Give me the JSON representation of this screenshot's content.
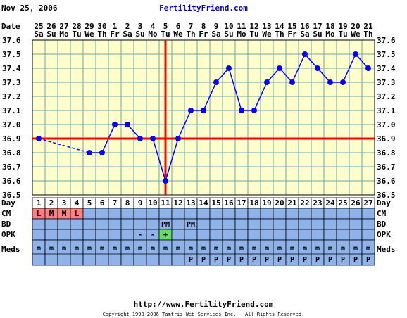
{
  "header": {
    "date": "Nov 25, 2006",
    "site_title": "FertilityFriend.com"
  },
  "footer": {
    "url": "http://www.FertilityFriend.com",
    "copyright": "Copyright 1998-2006 Tamtris Web Services Inc. - All Rights Reserved."
  },
  "labels": {
    "date": "Date",
    "day": "Day",
    "cm": "CM",
    "bd": "BD",
    "opk": "OPK",
    "meds": "Meds"
  },
  "colors": {
    "plot_bg": "#ffffcc",
    "grid": "#6fa8a8",
    "line": "#0000ff",
    "red": "#ff0000",
    "row_bg": "#8fb3e8",
    "day_row_bg": "#ffffff",
    "cm_cell": "#ff8080",
    "opk_positive": "#66dd66"
  },
  "chart_data": {
    "type": "line",
    "y_ticks": [
      "37.6",
      "37.5",
      "37.4",
      "37.3",
      "37.2",
      "37.1",
      "37.0",
      "36.9",
      "36.8",
      "36.7",
      "36.6",
      "36.5"
    ],
    "ylim": [
      36.5,
      37.6
    ],
    "dates": [
      {
        "d": "25",
        "w": "Sa"
      },
      {
        "d": "26",
        "w": "Su"
      },
      {
        "d": "27",
        "w": "Mo"
      },
      {
        "d": "28",
        "w": "Tu"
      },
      {
        "d": "29",
        "w": "We"
      },
      {
        "d": "30",
        "w": "Th"
      },
      {
        "d": "1",
        "w": "Fr"
      },
      {
        "d": "2",
        "w": "Sa"
      },
      {
        "d": "3",
        "w": "Su"
      },
      {
        "d": "4",
        "w": "Mo"
      },
      {
        "d": "5",
        "w": "Tu"
      },
      {
        "d": "6",
        "w": "We"
      },
      {
        "d": "7",
        "w": "Th"
      },
      {
        "d": "8",
        "w": "Fr"
      },
      {
        "d": "9",
        "w": "Sa"
      },
      {
        "d": "10",
        "w": "Su"
      },
      {
        "d": "11",
        "w": "Mo"
      },
      {
        "d": "12",
        "w": "Tu"
      },
      {
        "d": "13",
        "w": "We"
      },
      {
        "d": "14",
        "w": "Th"
      },
      {
        "d": "15",
        "w": "Fr"
      },
      {
        "d": "16",
        "w": "Sa"
      },
      {
        "d": "17",
        "w": "Su"
      },
      {
        "d": "18",
        "w": "Mo"
      },
      {
        "d": "19",
        "w": "Tu"
      },
      {
        "d": "20",
        "w": "We"
      },
      {
        "d": "21",
        "w": "Th"
      }
    ],
    "cycle_days": [
      "1",
      "2",
      "3",
      "4",
      "5",
      "6",
      "7",
      "8",
      "9",
      "10",
      "11",
      "12",
      "13",
      "14",
      "15",
      "16",
      "17",
      "18",
      "19",
      "20",
      "21",
      "22",
      "23",
      "24",
      "25",
      "26",
      "27"
    ],
    "temperatures": [
      36.9,
      null,
      null,
      null,
      36.8,
      36.8,
      37.0,
      37.0,
      36.9,
      36.9,
      36.6,
      36.9,
      37.1,
      37.1,
      37.3,
      37.4,
      37.1,
      37.1,
      37.3,
      37.4,
      37.3,
      37.5,
      37.4,
      37.3,
      37.3,
      37.5,
      37.4
    ],
    "coverline": 36.9,
    "ovulation_day": "11",
    "cm": [
      "L",
      "M",
      "M",
      "L",
      "",
      "",
      "",
      "",
      "",
      "",
      "",
      "",
      "",
      "",
      "",
      "",
      "",
      "",
      "",
      "",
      "",
      "",
      "",
      "",
      "",
      "",
      ""
    ],
    "bd": [
      "",
      "",
      "",
      "",
      "",
      "",
      "",
      "",
      "",
      "",
      "PM",
      "",
      "PM",
      "",
      "",
      "",
      "",
      "",
      "",
      "",
      "",
      "",
      "",
      "",
      "",
      "",
      ""
    ],
    "opk": [
      "",
      "",
      "",
      "",
      "",
      "",
      "",
      "",
      "-",
      "-",
      "+",
      "",
      "",
      "",
      "",
      "",
      "",
      "",
      "",
      "",
      "",
      "",
      "",
      "",
      "",
      "",
      ""
    ],
    "meds": [
      {
        "top": "m",
        "bottom": ""
      },
      {
        "top": "m",
        "bottom": ""
      },
      {
        "top": "m",
        "bottom": ""
      },
      {
        "top": "m",
        "bottom": ""
      },
      {
        "top": "m",
        "bottom": ""
      },
      {
        "top": "m",
        "bottom": ""
      },
      {
        "top": "m",
        "bottom": ""
      },
      {
        "top": "m",
        "bottom": ""
      },
      {
        "top": "m",
        "bottom": ""
      },
      {
        "top": "m",
        "bottom": ""
      },
      {
        "top": "m",
        "bottom": ""
      },
      {
        "top": "m",
        "bottom": ""
      },
      {
        "top": "m",
        "bottom": "P"
      },
      {
        "top": "m",
        "bottom": "P"
      },
      {
        "top": "m",
        "bottom": "P"
      },
      {
        "top": "m",
        "bottom": "P"
      },
      {
        "top": "m",
        "bottom": "P"
      },
      {
        "top": "m",
        "bottom": "P"
      },
      {
        "top": "m",
        "bottom": "P"
      },
      {
        "top": "m",
        "bottom": "P"
      },
      {
        "top": "m",
        "bottom": "P"
      },
      {
        "top": "m",
        "bottom": "P"
      },
      {
        "top": "m",
        "bottom": "P"
      },
      {
        "top": "m",
        "bottom": "P"
      },
      {
        "top": "m",
        "bottom": "P"
      },
      {
        "top": "m",
        "bottom": "P"
      },
      {
        "top": "m",
        "bottom": "P"
      }
    ]
  }
}
